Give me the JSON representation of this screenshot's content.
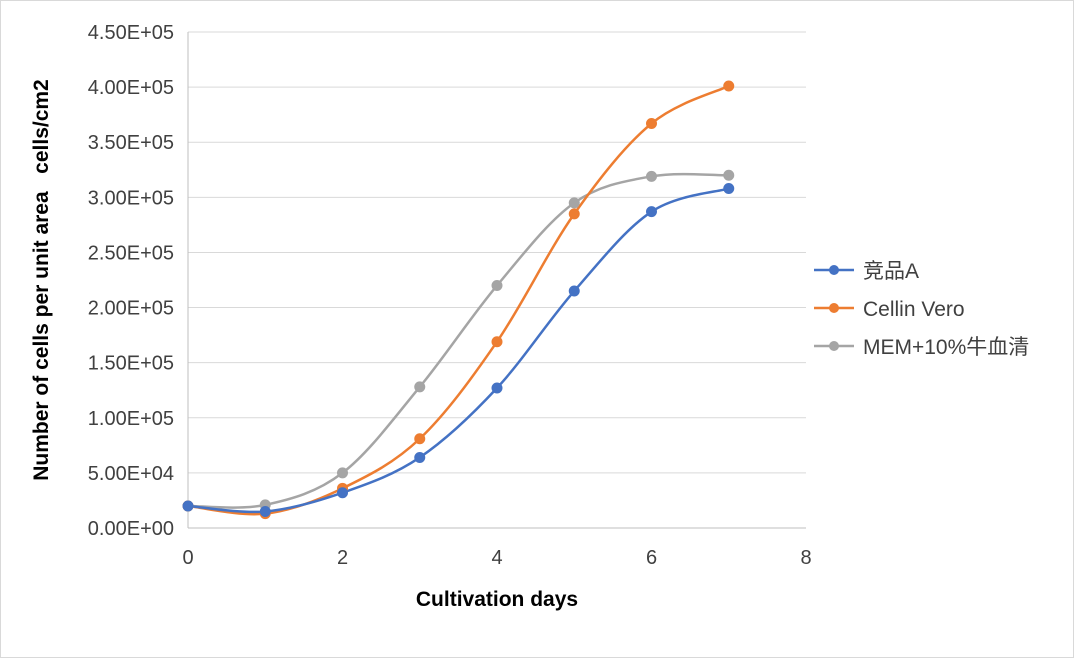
{
  "chart_data": {
    "type": "scatter",
    "smooth_lines": true,
    "markers": true,
    "title": "",
    "xlabel": "Cultivation days",
    "ylabel": "Number of cells per unit area   cells/cm2",
    "xlim": [
      0,
      8
    ],
    "ylim": [
      0,
      450000
    ],
    "xticks": [
      0,
      2,
      4,
      6,
      8
    ],
    "xtick_labels": [
      "0",
      "2",
      "4",
      "6",
      "8"
    ],
    "yticks": [
      0,
      50000,
      100000,
      150000,
      200000,
      250000,
      300000,
      350000,
      400000,
      450000
    ],
    "ytick_labels": [
      "0.00E+00",
      "5.00E+04",
      "1.00E+05",
      "1.50E+05",
      "2.00E+05",
      "2.50E+05",
      "3.00E+05",
      "3.50E+05",
      "4.00E+05",
      "4.50E+05"
    ],
    "grid": "horizontal",
    "legend_position": "right",
    "series": [
      {
        "name": "竞品A",
        "color": "#4472c4",
        "x": [
          0,
          1,
          2,
          3,
          4,
          5,
          6,
          7
        ],
        "y": [
          20000,
          15000,
          32000,
          64000,
          127000,
          215000,
          287000,
          308000
        ]
      },
      {
        "name": "Cellin Vero",
        "color": "#ed7d31",
        "x": [
          0,
          1,
          2,
          3,
          4,
          5,
          6,
          7
        ],
        "y": [
          20000,
          13000,
          36000,
          81000,
          169000,
          285000,
          367000,
          401000
        ]
      },
      {
        "name": "MEM+10%牛血清",
        "color": "#a5a5a5",
        "x": [
          0,
          1,
          2,
          3,
          4,
          5,
          6,
          7
        ],
        "y": [
          20000,
          21000,
          50000,
          128000,
          220000,
          295000,
          319000,
          320000
        ]
      }
    ]
  }
}
